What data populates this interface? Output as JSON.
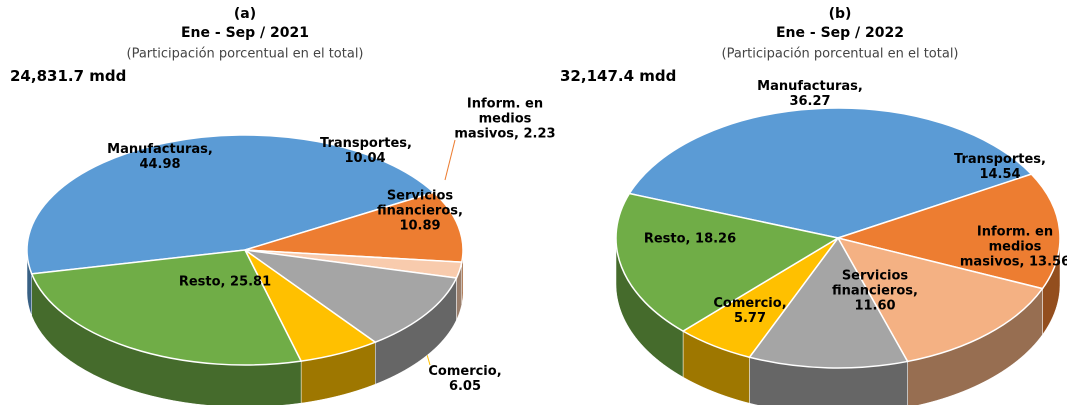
{
  "chart_data": [
    {
      "type": "pie",
      "title": "(a)",
      "subtitle": "Ene - Sep / 2021",
      "note": "(Participación porcentual en el total)",
      "annotation": "24,831.7 mdd",
      "categories": [
        "Manufacturas",
        "Transportes",
        "Inform. en medios masivos",
        "Servicios financieros",
        "Comercio",
        "Resto"
      ],
      "values": [
        44.98,
        10.04,
        2.23,
        10.89,
        6.05,
        25.81
      ],
      "value_labels": [
        "Manufacturas, 44.98",
        "Transportes, 10.04",
        "Inform. en medios masivos, 2.23",
        "Servicios financieros, 10.89",
        "Comercio, 6.05",
        "Resto, 25.81"
      ],
      "colors": [
        "#5b9bd5",
        "#ed7d31",
        "#f8cbad",
        "#a5a5a5",
        "#ffc000",
        "#70ad47"
      ]
    },
    {
      "type": "pie",
      "title": "(b)",
      "subtitle": "Ene - Sep / 2022",
      "note": "(Participación porcentual en el total)",
      "annotation": "32,147.4 mdd",
      "categories": [
        "Manufacturas",
        "Transportes",
        "Inform. en medios masivos",
        "Servicios financieros",
        "Comercio",
        "Resto"
      ],
      "values": [
        36.27,
        14.54,
        13.56,
        11.6,
        5.77,
        18.26
      ],
      "value_labels": [
        "Manufacturas, 36.27",
        "Transportes, 14.54",
        "Inform. en medios masivos, 13.56",
        "Servicios financieros, 11.60",
        "Comercio, 5.77",
        "Resto, 18.26"
      ],
      "colors": [
        "#5b9bd5",
        "#ed7d31",
        "#f4b183",
        "#a5a5a5",
        "#ffc000",
        "#70ad47"
      ]
    }
  ]
}
